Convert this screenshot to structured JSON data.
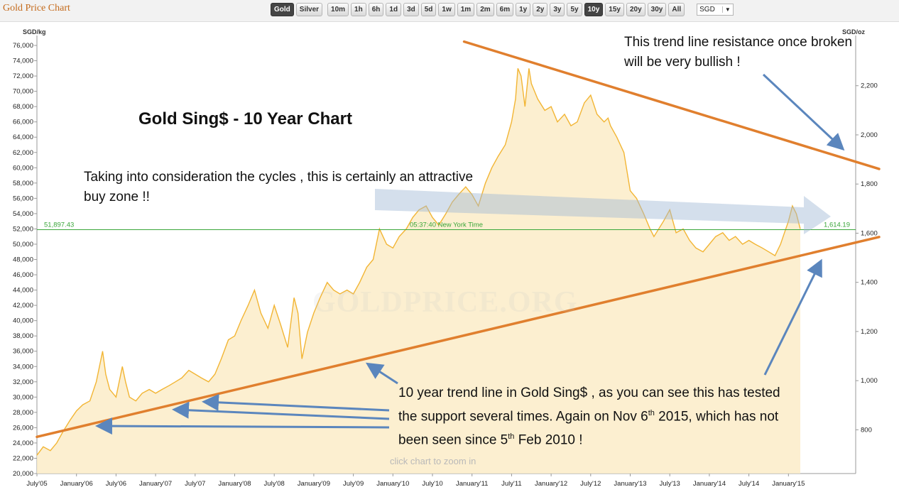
{
  "app": {
    "title": "Gold Price Chart"
  },
  "toolbar": {
    "ranges": [
      "Gold",
      "Silver",
      "10m",
      "1h",
      "6h",
      "1d",
      "3d",
      "5d",
      "1w",
      "1m",
      "2m",
      "6m",
      "1y",
      "2y",
      "3y",
      "5y",
      "10y",
      "15y",
      "20y",
      "30y",
      "All"
    ],
    "active": [
      "Gold",
      "10y"
    ],
    "currency": "SGD"
  },
  "chart_data": {
    "type": "area",
    "title": "Gold Sing$  - 10 Year Chart",
    "ylabel_left": "SGD/kg",
    "ylabel_right": "SGD/oz",
    "ylim_left": [
      20000,
      76000
    ],
    "ylim_right": [
      600,
      2300
    ],
    "yticks_left": [
      "20,000",
      "22,000",
      "24,000",
      "26,000",
      "28,000",
      "30,000",
      "32,000",
      "34,000",
      "36,000",
      "38,000",
      "40,000",
      "42,000",
      "44,000",
      "46,000",
      "48,000",
      "50,000",
      "52,000",
      "54,000",
      "56,000",
      "58,000",
      "60,000",
      "62,000",
      "64,000",
      "66,000",
      "68,000",
      "70,000",
      "72,000",
      "74,000",
      "76,000"
    ],
    "yticks_right": [
      "800",
      "1,000",
      "1,200",
      "1,400",
      "1,600",
      "1,800",
      "2,000",
      "2,200"
    ],
    "xticks": [
      "July'05",
      "January'06",
      "July'06",
      "January'07",
      "July'07",
      "January'08",
      "July'08",
      "January'09",
      "July'09",
      "January'10",
      "July'10",
      "January'11",
      "July'11",
      "January'12",
      "July'12",
      "January'13",
      "July'13",
      "January'14",
      "July'14",
      "January'15"
    ],
    "x_range": [
      2005.5,
      2015.85
    ],
    "series": [
      {
        "x": [
          2005.5,
          2005.58,
          2005.67,
          2005.75,
          2005.83,
          2005.92,
          2006.0,
          2006.08,
          2006.17,
          2006.25,
          2006.33,
          2006.37,
          2006.42,
          2006.5,
          2006.58,
          2006.62,
          2006.67,
          2006.75,
          2006.83,
          2006.92,
          2007.0,
          2007.08,
          2007.17,
          2007.25,
          2007.33,
          2007.42,
          2007.5,
          2007.58,
          2007.67,
          2007.75,
          2007.83,
          2007.92,
          2008.0,
          2008.08,
          2008.17,
          2008.25,
          2008.33,
          2008.42,
          2008.5,
          2008.58,
          2008.67,
          2008.75,
          2008.8,
          2008.85,
          2008.92,
          2009.0,
          2009.08,
          2009.17,
          2009.25,
          2009.33,
          2009.42,
          2009.5,
          2009.58,
          2009.67,
          2009.75,
          2009.83,
          2009.92,
          2010.0,
          2010.08,
          2010.17,
          2010.25,
          2010.33,
          2010.42,
          2010.5,
          2010.58,
          2010.67,
          2010.75,
          2010.83,
          2010.92,
          2011.0,
          2011.08,
          2011.17,
          2011.25,
          2011.33,
          2011.42,
          2011.5,
          2011.55,
          2011.58,
          2011.62,
          2011.67,
          2011.72,
          2011.75,
          2011.83,
          2011.92,
          2012.0,
          2012.08,
          2012.17,
          2012.25,
          2012.33,
          2012.42,
          2012.5,
          2012.58,
          2012.67,
          2012.72,
          2012.75,
          2012.83,
          2012.92,
          2013.0,
          2013.08,
          2013.17,
          2013.25,
          2013.3,
          2013.42,
          2013.5,
          2013.58,
          2013.67,
          2013.75,
          2013.83,
          2013.92,
          2014.0,
          2014.08,
          2014.17,
          2014.25,
          2014.33,
          2014.42,
          2014.5,
          2014.58,
          2014.67,
          2014.75,
          2014.83,
          2014.9,
          2014.95,
          2015.0,
          2015.05,
          2015.1,
          2015.15
        ],
        "y": [
          22400,
          23500,
          23000,
          24000,
          25500,
          27000,
          28200,
          29000,
          29500,
          32000,
          36000,
          33000,
          31000,
          30000,
          34000,
          32000,
          30000,
          29500,
          30500,
          31000,
          30500,
          31000,
          31500,
          32000,
          32500,
          33500,
          33000,
          32500,
          32000,
          33000,
          35000,
          37500,
          38000,
          40000,
          42000,
          44000,
          41000,
          39000,
          42000,
          39500,
          36500,
          43000,
          41000,
          35000,
          38500,
          41000,
          43000,
          45000,
          44000,
          43500,
          44000,
          43500,
          45000,
          47000,
          48000,
          52000,
          50000,
          49500,
          51000,
          52000,
          53500,
          54500,
          55000,
          53500,
          52500,
          54000,
          55500,
          56500,
          57500,
          56500,
          55000,
          58000,
          60000,
          61500,
          63000,
          66000,
          69000,
          73000,
          72000,
          68000,
          73000,
          71000,
          69000,
          67500,
          68000,
          66000,
          67000,
          65500,
          66000,
          68500,
          69500,
          67000,
          66000,
          66500,
          65500,
          64000,
          62000,
          57000,
          56000,
          54000,
          52000,
          51000,
          53000,
          54500,
          51500,
          52000,
          50500,
          49500,
          49000,
          50000,
          51000,
          51500,
          50500,
          51000,
          50000,
          50500,
          50000,
          49500,
          49000,
          48500,
          50000,
          51500,
          53000,
          55000,
          54000,
          52000
        ],
        "color": "#f2b534",
        "fill": "#fbecc8"
      }
    ],
    "reference_line": {
      "value_left": "51,897.43",
      "time": "05:37:40 New York Time",
      "value_right": "1,614.19",
      "y": 51897.43,
      "color": "#3aa63a"
    },
    "trend_lines": [
      {
        "name": "resistance",
        "from": [
          2010.9,
          76500
        ],
        "to": [
          2015.85,
          60400
        ],
        "color": "#e07f2e"
      },
      {
        "name": "support",
        "from": [
          2005.5,
          24800
        ],
        "to": [
          2015.85,
          50200
        ],
        "color": "#e07f2e"
      }
    ],
    "grid": false,
    "legend": "none"
  },
  "annotations": {
    "resistance_note": "This trend line resistance once broken will be very bullish !",
    "cycles_note": "Taking into consideration the cycles  , this is certainly an attractive buy zone !!",
    "trend_note_part1": "10 year trend line in Gold Sing$ , as you can see this has tested the support several times. Again on Nov 6",
    "trend_note_sup1": "th",
    "trend_note_part2": " 2015, which has not been seen since 5",
    "trend_note_sup2": "th",
    "trend_note_part3": " Feb 2010 !"
  },
  "footer": {
    "zoom_hint": "click chart to zoom in",
    "watermark": "GOLDPRICE.ORG"
  }
}
